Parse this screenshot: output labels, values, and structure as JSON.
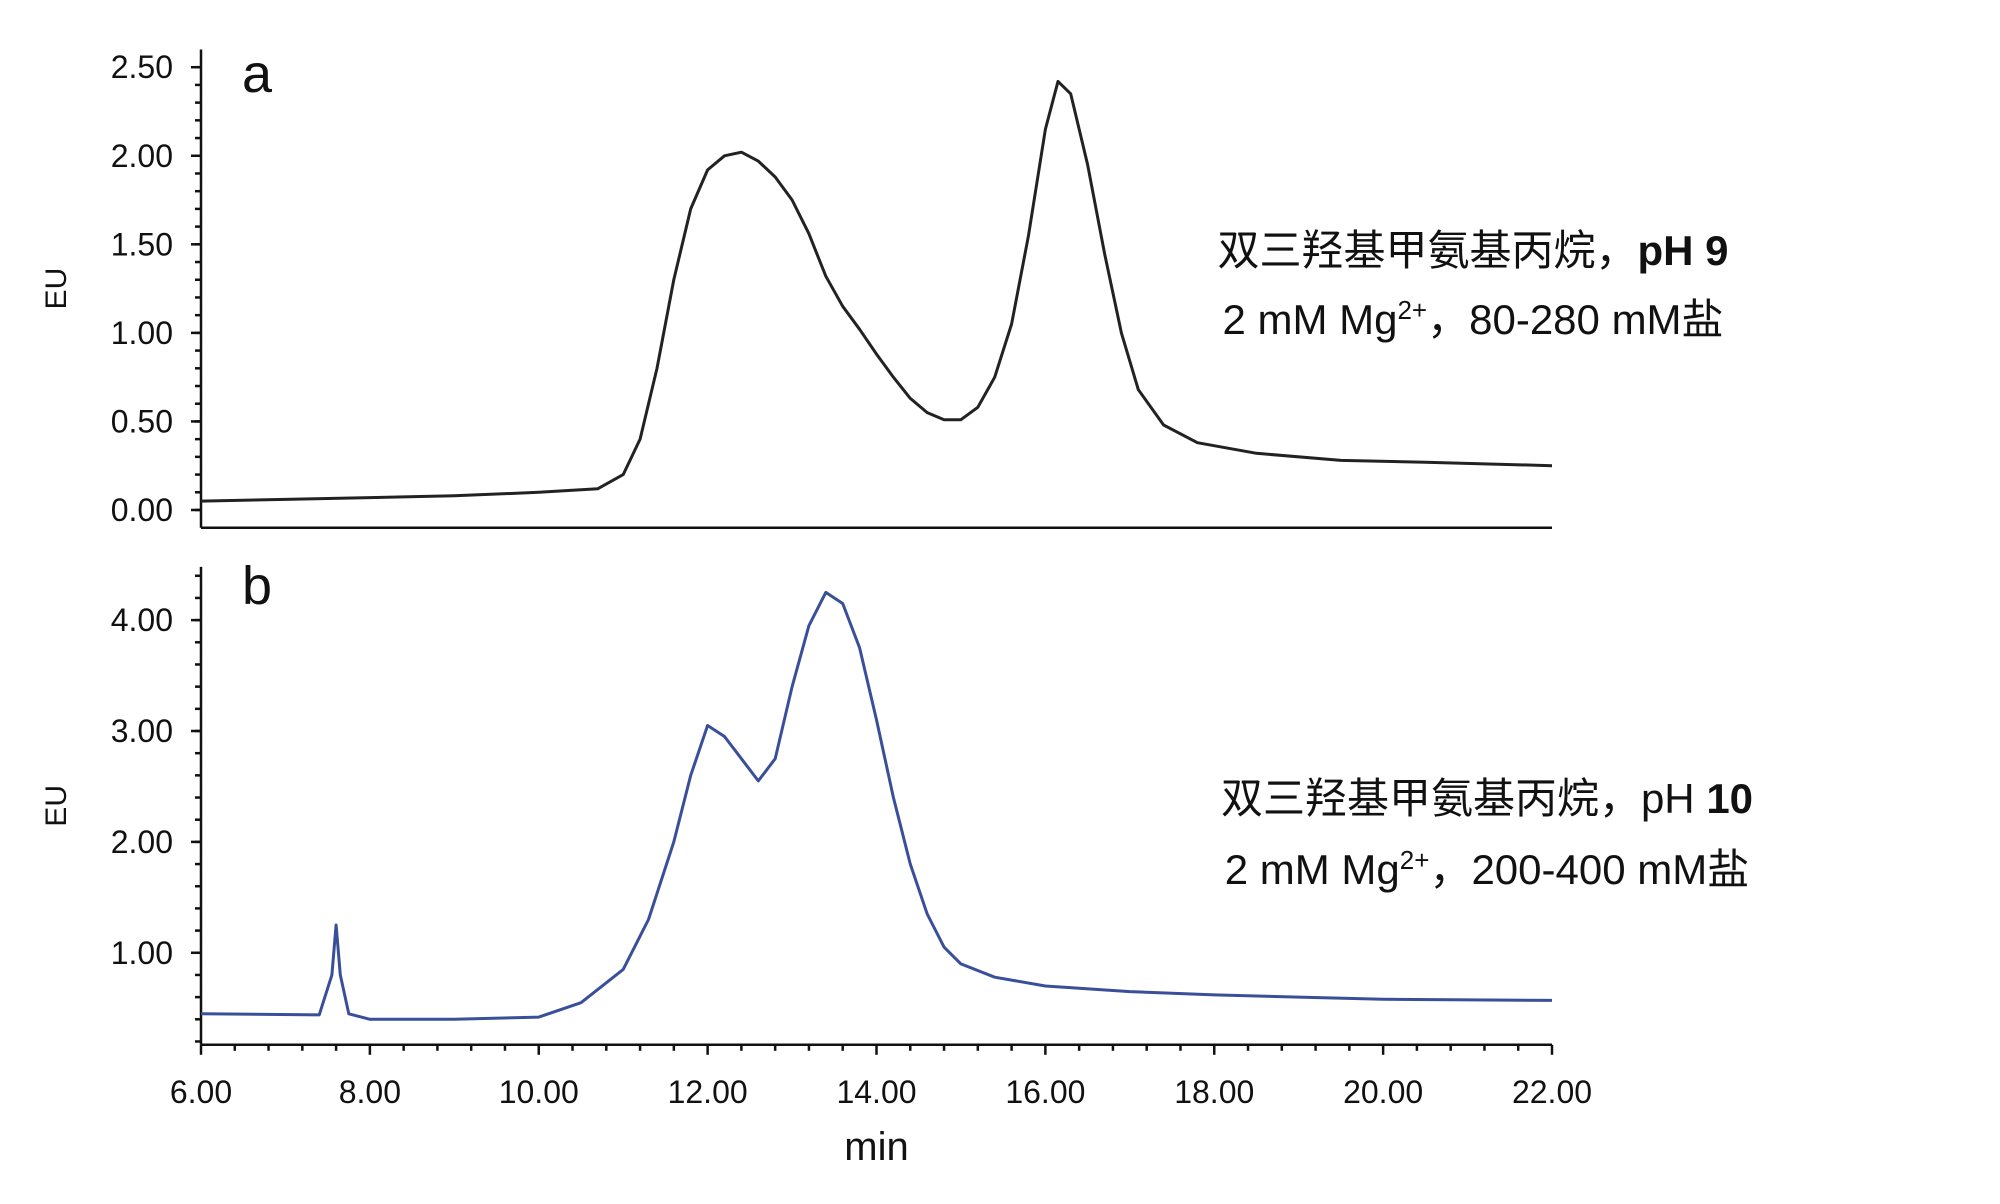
{
  "chart_data": [
    {
      "type": "line",
      "panel_label": "a",
      "ylabel": "EU",
      "color": "#222222",
      "xlim": [
        6,
        22
      ],
      "ylim": [
        -0.1,
        2.6
      ],
      "yticks": [
        {
          "value": 0,
          "label": "0.00"
        },
        {
          "value": 0.5,
          "label": "0.50"
        },
        {
          "value": 1,
          "label": "1.00"
        },
        {
          "value": 1.5,
          "label": "1.50"
        },
        {
          "value": 2,
          "label": "2.00"
        },
        {
          "value": 2.5,
          "label": "2.50"
        }
      ],
      "x": [
        6.0,
        7,
        8,
        9,
        10,
        10.7,
        11.0,
        11.2,
        11.4,
        11.6,
        11.8,
        12.0,
        12.2,
        12.4,
        12.6,
        12.8,
        13.0,
        13.2,
        13.4,
        13.6,
        13.8,
        14.0,
        14.2,
        14.4,
        14.6,
        14.8,
        15.0,
        15.2,
        15.4,
        15.6,
        15.8,
        16.0,
        16.15,
        16.3,
        16.5,
        16.7,
        16.9,
        17.1,
        17.4,
        17.8,
        18.5,
        19.5,
        20.5,
        22
      ],
      "values": [
        0.05,
        0.06,
        0.07,
        0.08,
        0.1,
        0.12,
        0.2,
        0.4,
        0.8,
        1.3,
        1.7,
        1.92,
        2.0,
        2.02,
        1.97,
        1.88,
        1.75,
        1.56,
        1.32,
        1.15,
        1.02,
        0.88,
        0.75,
        0.63,
        0.55,
        0.51,
        0.51,
        0.58,
        0.75,
        1.05,
        1.55,
        2.15,
        2.42,
        2.35,
        1.95,
        1.45,
        1.0,
        0.68,
        0.48,
        0.38,
        0.32,
        0.28,
        0.27,
        0.25
      ],
      "annotation": [
        [
          {
            "text": "双三羟基甲氨基丙烷，",
            "style": "normal"
          },
          {
            "text": "pH 9",
            "style": "bold"
          }
        ],
        [
          {
            "text": "2 mM Mg",
            "style": "normal"
          },
          {
            "text": "2+",
            "style": "sup"
          },
          {
            "text": "，80-280 mM盐",
            "style": "normal"
          }
        ]
      ]
    },
    {
      "type": "line",
      "panel_label": "b",
      "ylabel": "EU",
      "xlabel": "min",
      "color": "#3a4f9a",
      "xlim": [
        6,
        22
      ],
      "ylim": [
        0.17,
        4.48
      ],
      "xticks": [
        {
          "value": 6,
          "label": "6.00"
        },
        {
          "value": 8,
          "label": "8.00"
        },
        {
          "value": 10,
          "label": "10.00"
        },
        {
          "value": 12,
          "label": "12.00"
        },
        {
          "value": 14,
          "label": "14.00"
        },
        {
          "value": 16,
          "label": "16.00"
        },
        {
          "value": 18,
          "label": "18.00"
        },
        {
          "value": 20,
          "label": "20.00"
        },
        {
          "value": 22,
          "label": "22.00"
        }
      ],
      "yticks": [
        {
          "value": 1,
          "label": "1.00"
        },
        {
          "value": 2,
          "label": "2.00"
        },
        {
          "value": 3,
          "label": "3.00"
        },
        {
          "value": 4,
          "label": "4.00"
        }
      ],
      "x": [
        6.0,
        7.4,
        7.55,
        7.6,
        7.65,
        7.75,
        8,
        9,
        10,
        10.5,
        11,
        11.3,
        11.6,
        11.8,
        12.0,
        12.2,
        12.4,
        12.6,
        12.8,
        13.0,
        13.2,
        13.4,
        13.6,
        13.8,
        14.0,
        14.2,
        14.4,
        14.6,
        14.8,
        15.0,
        15.4,
        16,
        17,
        18,
        19,
        20,
        22
      ],
      "values": [
        0.45,
        0.44,
        0.8,
        1.25,
        0.8,
        0.45,
        0.4,
        0.4,
        0.42,
        0.55,
        0.85,
        1.3,
        2.0,
        2.6,
        3.05,
        2.95,
        2.75,
        2.55,
        2.75,
        3.4,
        3.95,
        4.25,
        4.15,
        3.75,
        3.1,
        2.4,
        1.8,
        1.35,
        1.05,
        0.9,
        0.78,
        0.7,
        0.65,
        0.62,
        0.6,
        0.58,
        0.57
      ],
      "annotation": [
        [
          {
            "text": "双三羟基甲氨基丙烷，pH ",
            "style": "normal"
          },
          {
            "text": "10",
            "style": "bold"
          }
        ],
        [
          {
            "text": "2 mM Mg",
            "style": "normal"
          },
          {
            "text": "2+",
            "style": "sup"
          },
          {
            "text": "，200-400 mM盐",
            "style": "normal"
          }
        ]
      ]
    }
  ]
}
